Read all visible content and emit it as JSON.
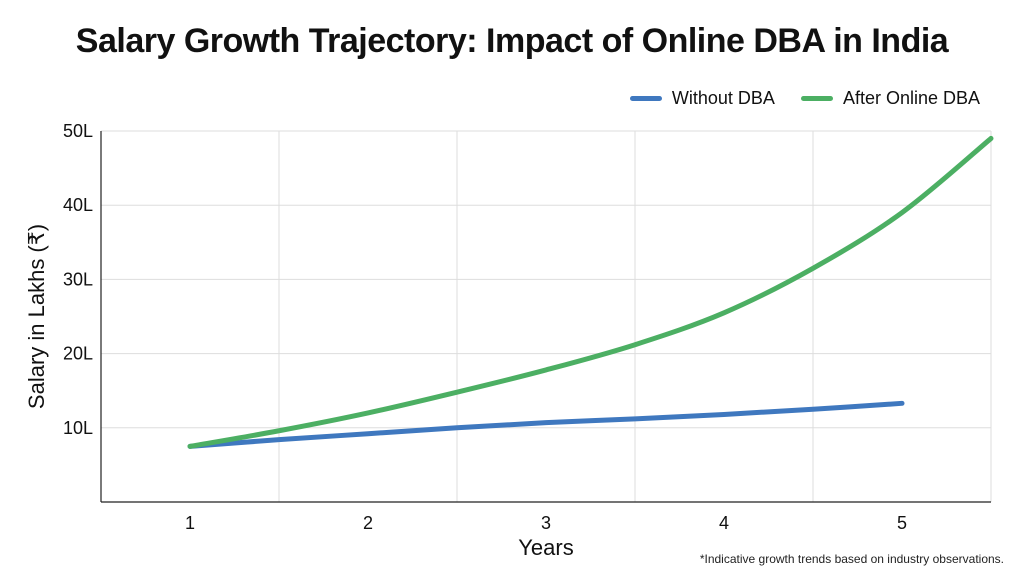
{
  "chart_data": {
    "type": "line",
    "title": "Salary Growth Trajectory: Impact of Online DBA in India",
    "xlabel": "Years",
    "ylabel": "Salary in Lakhs (₹)",
    "x_ticks": [
      "1",
      "2",
      "3",
      "4",
      "5"
    ],
    "y_ticks": [
      "10L",
      "20L",
      "30L",
      "40L",
      "50L"
    ],
    "xlim": [
      0.5,
      5.5
    ],
    "ylim": [
      0,
      50
    ],
    "grid": true,
    "legend_position": "top-right",
    "series": [
      {
        "name": "Without DBA",
        "color": "#3f78bf",
        "x": [
          1,
          1.5,
          2,
          2.5,
          3,
          3.5,
          4,
          4.5,
          5
        ],
        "y": [
          7.5,
          8.4,
          9.2,
          10.0,
          10.7,
          11.2,
          11.8,
          12.5,
          13.3
        ]
      },
      {
        "name": "After Online DBA",
        "color": "#4caf63",
        "x": [
          1,
          1.5,
          2,
          2.5,
          3,
          3.5,
          4,
          4.5,
          5,
          5.5
        ],
        "y": [
          7.5,
          9.6,
          12.0,
          14.8,
          17.8,
          21.2,
          25.5,
          31.5,
          39.0,
          49.0
        ]
      }
    ],
    "footnote": "*Indicative growth trends based on industry observations."
  }
}
